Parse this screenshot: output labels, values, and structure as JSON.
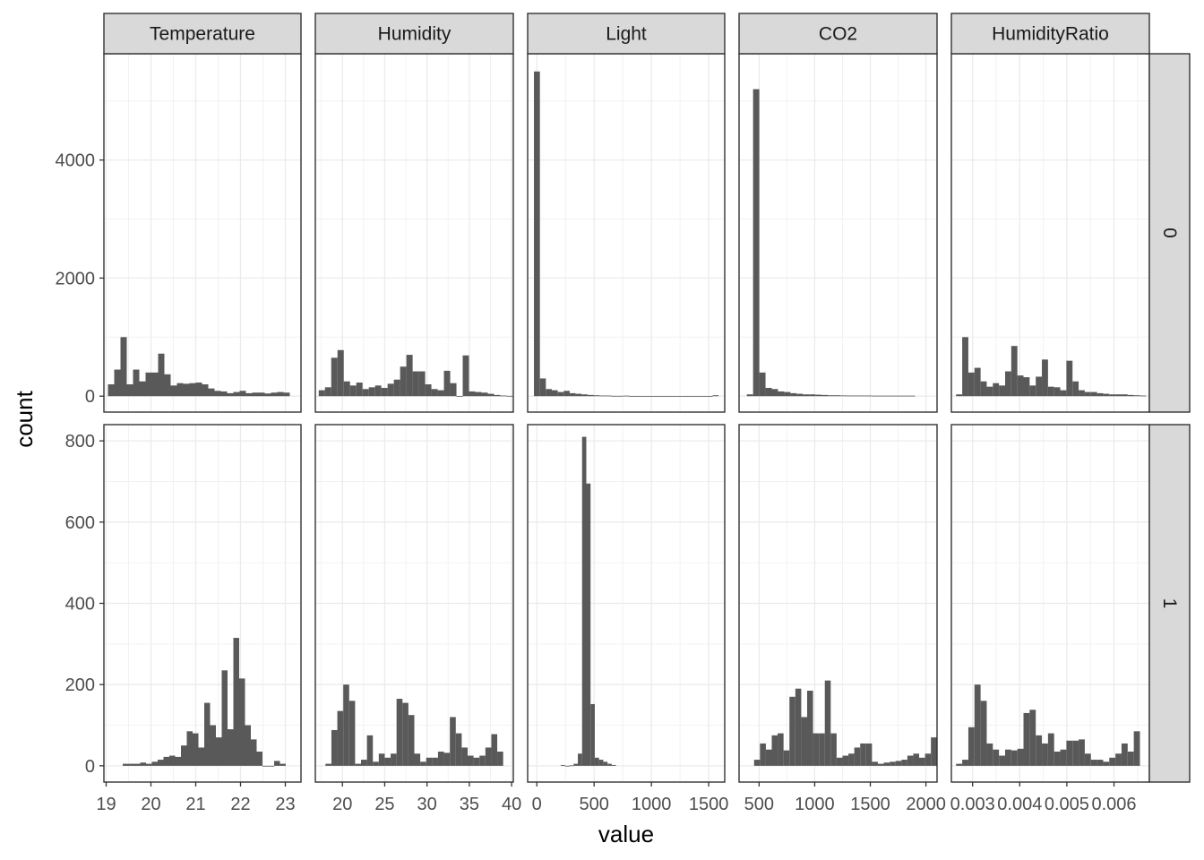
{
  "chart_data": {
    "type": "bar",
    "subtype": "faceted histogram",
    "xlabel": "value",
    "ylabel": "count",
    "facet_cols": [
      "Temperature",
      "Humidity",
      "Light",
      "CO2",
      "HumidityRatio"
    ],
    "facet_rows": [
      "0",
      "1"
    ],
    "grid": true,
    "y_axes": {
      "0": {
        "ylim": [
          -270,
          5800
        ],
        "ticks": [
          0,
          2000,
          4000
        ],
        "tick_labels": [
          "0",
          "2000",
          "4000"
        ]
      },
      "1": {
        "ylim": [
          -40,
          840
        ],
        "ticks": [
          0,
          200,
          400,
          600,
          800
        ],
        "tick_labels": [
          "0",
          "200",
          "400",
          "600",
          "800"
        ]
      }
    },
    "x_axes": [
      {
        "name": "Temperature",
        "xlim": [
          18.95,
          23.35
        ],
        "ticks": [
          19,
          20,
          21,
          22,
          23
        ],
        "tick_labels": [
          "19",
          "20",
          "21",
          "22",
          "23"
        ]
      },
      {
        "name": "Humidity",
        "xlim": [
          16.8,
          40.2
        ],
        "ticks": [
          20,
          25,
          30,
          35,
          40
        ],
        "tick_labels": [
          "20",
          "25",
          "30",
          "35",
          "40"
        ]
      },
      {
        "name": "Light",
        "xlim": [
          -80,
          1640
        ],
        "ticks": [
          0,
          500,
          1000,
          1500
        ],
        "tick_labels": [
          "0",
          "500",
          "1000",
          "1500"
        ]
      },
      {
        "name": "CO2",
        "xlim": [
          320,
          2100
        ],
        "ticks": [
          500,
          1000,
          1500,
          2000
        ],
        "tick_labels": [
          "500",
          "1000",
          "1500",
          "2000"
        ]
      },
      {
        "name": "HumidityRatio",
        "xlim": [
          0.00255,
          0.00675
        ],
        "ticks": [
          0.003,
          0.004,
          0.005,
          0.006
        ],
        "tick_labels": [
          "0.003",
          "0.004",
          "0.005",
          "0.006"
        ]
      }
    ],
    "panels": [
      {
        "col": "Temperature",
        "row": "0",
        "x_start": 19.04,
        "bin_width": 0.14,
        "counts": [
          200,
          450,
          1000,
          200,
          450,
          250,
          400,
          400,
          720,
          370,
          180,
          220,
          210,
          220,
          230,
          200,
          130,
          90,
          80,
          50,
          70,
          90,
          50,
          60,
          60,
          45,
          60,
          70,
          60
        ]
      },
      {
        "col": "Humidity",
        "row": "0",
        "x_start": 17.2,
        "bin_width": 0.74,
        "counts": [
          100,
          150,
          650,
          780,
          250,
          180,
          230,
          120,
          150,
          180,
          140,
          210,
          280,
          500,
          700,
          420,
          420,
          200,
          120,
          100,
          430,
          220,
          0,
          690,
          80,
          70,
          60,
          40,
          20,
          10,
          5
        ]
      },
      {
        "col": "Light",
        "row": "0",
        "x_start": -25,
        "bin_width": 52,
        "counts": [
          5500,
          300,
          120,
          100,
          70,
          90,
          50,
          40,
          30,
          20,
          15,
          10,
          10,
          5,
          5,
          8,
          3,
          2,
          0,
          0,
          0,
          0,
          0,
          0,
          0,
          0,
          0,
          0,
          0,
          0,
          15
        ]
      },
      {
        "col": "CO2",
        "row": "0",
        "x_start": 390,
        "bin_width": 56,
        "counts": [
          30,
          5200,
          400,
          140,
          120,
          80,
          70,
          50,
          40,
          30,
          30,
          25,
          20,
          15,
          15,
          12,
          10,
          10,
          10,
          10,
          8,
          8,
          8,
          8,
          8,
          8,
          8
        ]
      },
      {
        "col": "HumidityRatio",
        "row": "0",
        "x_start": 0.00265,
        "bin_width": 0.00013,
        "counts": [
          30,
          1000,
          400,
          480,
          250,
          160,
          220,
          180,
          420,
          850,
          350,
          320,
          180,
          330,
          620,
          160,
          150,
          100,
          600,
          250,
          100,
          70,
          70,
          50,
          40,
          30,
          30,
          30,
          20,
          15,
          10
        ]
      },
      {
        "col": "Temperature",
        "row": "1",
        "x_start": 19.37,
        "bin_width": 0.13,
        "counts": [
          5,
          5,
          5,
          8,
          5,
          10,
          15,
          22,
          25,
          22,
          50,
          85,
          80,
          45,
          155,
          100,
          70,
          235,
          90,
          315,
          215,
          100,
          65,
          35,
          0,
          0,
          12,
          5
        ]
      },
      {
        "col": "Humidity",
        "row": "1",
        "x_start": 18.0,
        "bin_width": 0.7,
        "counts": [
          5,
          88,
          135,
          200,
          160,
          5,
          15,
          75,
          10,
          30,
          20,
          30,
          165,
          155,
          125,
          30,
          10,
          20,
          20,
          35,
          32,
          120,
          80,
          45,
          25,
          20,
          25,
          45,
          78,
          35
        ]
      },
      {
        "col": "Light",
        "row": "1",
        "x_start": 210,
        "bin_width": 37,
        "counts": [
          2,
          0,
          1,
          5,
          30,
          810,
          695,
          152,
          20,
          15,
          10,
          5,
          2
        ]
      },
      {
        "col": "CO2",
        "row": "1",
        "x_start": 455,
        "bin_width": 53,
        "counts": [
          15,
          55,
          40,
          75,
          80,
          38,
          170,
          190,
          120,
          185,
          80,
          80,
          210,
          80,
          20,
          25,
          30,
          45,
          55,
          55,
          10,
          5,
          8,
          10,
          12,
          15,
          25,
          30,
          20,
          30,
          70
        ]
      },
      {
        "col": "HumidityRatio",
        "row": "1",
        "x_start": 0.00265,
        "bin_width": 0.00013,
        "counts": [
          5,
          15,
          95,
          200,
          160,
          55,
          40,
          25,
          40,
          38,
          42,
          130,
          138,
          75,
          55,
          80,
          35,
          40,
          62,
          62,
          65,
          30,
          15,
          15,
          10,
          20,
          30,
          55,
          35,
          85
        ]
      }
    ]
  }
}
